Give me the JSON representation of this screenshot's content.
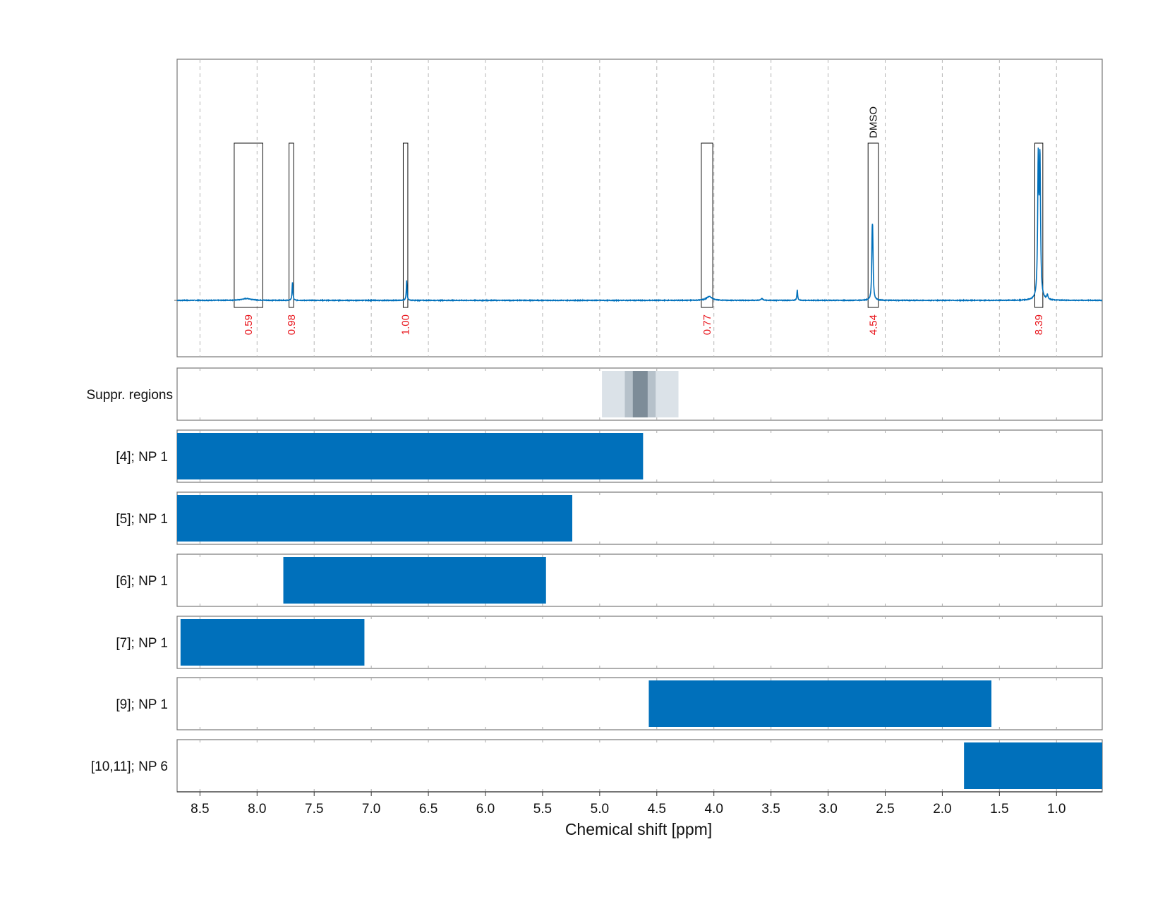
{
  "chart_data": {
    "type": "nmr-spectrum-with-range-tracks",
    "title": "",
    "xlabel": "Chemical shift [ppm]",
    "x_reversed": true,
    "xlim": [
      8.7,
      0.6
    ],
    "xticks": [
      8.5,
      8.0,
      7.5,
      7.0,
      6.5,
      6.0,
      5.5,
      5.0,
      4.5,
      4.0,
      3.5,
      3.0,
      2.5,
      2.0,
      1.5,
      1.0
    ],
    "xtick_labels": [
      "8.5",
      "8.0",
      "7.5",
      "7.0",
      "6.5",
      "6.0",
      "5.5",
      "5.0",
      "4.5",
      "4.0",
      "3.5",
      "3.0",
      "2.5",
      "2.0",
      "1.5",
      "1.0"
    ],
    "grid": true,
    "line_color": "#0070bb",
    "integral_label_color": "#e8141b",
    "spectrum_peaks": [
      {
        "ppm": 8.09,
        "height": 0.012,
        "width": 0.05
      },
      {
        "ppm": 7.69,
        "height": 0.12,
        "width": 0.004
      },
      {
        "ppm": 6.69,
        "height": 0.13,
        "width": 0.004
      },
      {
        "ppm": 4.04,
        "height": 0.025,
        "width": 0.03
      },
      {
        "ppm": 3.58,
        "height": 0.012,
        "width": 0.01
      },
      {
        "ppm": 3.27,
        "height": 0.07,
        "width": 0.004
      },
      {
        "ppm": 2.61,
        "height": 0.39,
        "width": 0.005
      },
      {
        "ppm": 2.615,
        "height": 0.26,
        "width": 0.004
      },
      {
        "ppm": 1.16,
        "height": 0.88,
        "width": 0.006
      },
      {
        "ppm": 1.145,
        "height": 0.88,
        "width": 0.006
      },
      {
        "ppm": 1.08,
        "height": 0.03,
        "width": 0.006
      }
    ],
    "integral_regions": [
      {
        "from": 8.2,
        "to": 7.95,
        "label": "0.59"
      },
      {
        "from": 7.72,
        "to": 7.68,
        "label": "0.98"
      },
      {
        "from": 6.72,
        "to": 6.68,
        "label": "1.00"
      },
      {
        "from": 4.11,
        "to": 4.01,
        "label": "0.77"
      },
      {
        "from": 2.65,
        "to": 2.56,
        "label": "4.54",
        "annotation": "DMSO"
      },
      {
        "from": 1.19,
        "to": 1.12,
        "label": "8.39"
      }
    ],
    "suppression_label": "Suppr. regions",
    "suppression_regions": [
      {
        "from": 4.98,
        "to": 4.31,
        "intensity": "light"
      },
      {
        "from": 4.78,
        "to": 4.51,
        "intensity": "medium"
      },
      {
        "from": 4.71,
        "to": 4.58,
        "intensity": "dark"
      }
    ],
    "suppression_colors": {
      "light": "#dbe2e8",
      "medium": "#b6c1ca",
      "dark": "#7d8c98"
    },
    "bar_color": "#0070bb",
    "tracks": [
      {
        "label": "[4]; NP 1",
        "from": 8.7,
        "to": 4.62
      },
      {
        "label": "[5]; NP 1",
        "from": 8.7,
        "to": 5.24
      },
      {
        "label": "[6]; NP 1",
        "from": 7.77,
        "to": 5.47
      },
      {
        "label": "[7]; NP 1",
        "from": 8.67,
        "to": 7.06
      },
      {
        "label": "[9]; NP 1",
        "from": 4.57,
        "to": 1.57
      },
      {
        "label": "[10,11]; NP 6",
        "from": 1.81,
        "to": 0.6
      }
    ]
  }
}
